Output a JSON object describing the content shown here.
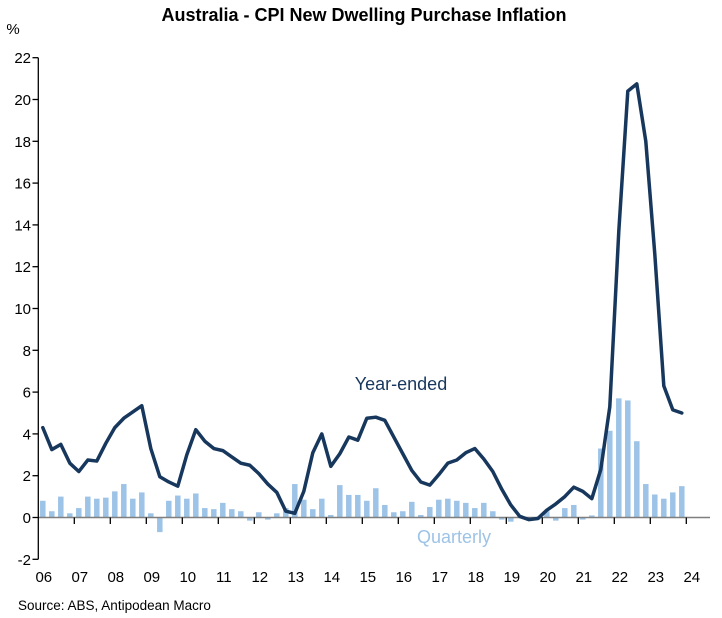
{
  "title": "Australia - CPI New Dwelling Purchase Inflation",
  "y_axis_unit_label": "%",
  "source": "Source: ABS, Antipodean Macro",
  "colors": {
    "line": "#17375D",
    "bar": "#9DC3E6",
    "axis": "#000000",
    "zero_line": "#7F7F7F",
    "text": "#000000"
  },
  "chart_data": {
    "type": "mixed",
    "frequency": "quarterly",
    "x_start_year": 2006,
    "x_tick_labels": [
      "06",
      "07",
      "08",
      "09",
      "10",
      "11",
      "12",
      "13",
      "14",
      "15",
      "16",
      "17",
      "18",
      "19",
      "20",
      "21",
      "22",
      "23",
      "24"
    ],
    "ylim": [
      -2,
      22
    ],
    "y_tick_step": 2,
    "grid": false,
    "legend_position": "inline-labels",
    "series": [
      {
        "name": "Year-ended",
        "type": "line",
        "color": "#17375D",
        "values": [
          4.3,
          3.25,
          3.5,
          2.6,
          2.2,
          2.75,
          2.7,
          3.55,
          4.3,
          4.75,
          5.05,
          5.35,
          3.3,
          1.95,
          1.7,
          1.5,
          3.0,
          4.2,
          3.65,
          3.3,
          3.2,
          2.9,
          2.6,
          2.5,
          2.1,
          1.6,
          1.2,
          0.3,
          0.2,
          1.25,
          3.1,
          4.0,
          2.45,
          3.05,
          3.85,
          3.7,
          4.75,
          4.8,
          4.65,
          3.85,
          3.05,
          2.25,
          1.7,
          1.55,
          2.05,
          2.6,
          2.75,
          3.1,
          3.3,
          2.8,
          2.2,
          1.35,
          0.6,
          0.05,
          -0.1,
          -0.05,
          0.35,
          0.65,
          1.0,
          1.45,
          1.25,
          0.9,
          2.3,
          5.3,
          13.7,
          20.4,
          20.75,
          18.0,
          12.6,
          6.3,
          5.15,
          5.0
        ]
      },
      {
        "name": "Quarterly",
        "type": "bar",
        "color": "#9DC3E6",
        "values": [
          0.8,
          0.3,
          1.0,
          0.2,
          0.45,
          1.0,
          0.9,
          0.95,
          1.25,
          1.6,
          0.9,
          1.2,
          0.2,
          -0.7,
          0.8,
          1.05,
          0.9,
          1.15,
          0.45,
          0.4,
          0.7,
          0.4,
          0.3,
          -0.15,
          0.25,
          -0.1,
          0.2,
          0.45,
          1.6,
          0.85,
          0.4,
          0.9,
          0.12,
          1.55,
          1.08,
          1.08,
          0.8,
          1.4,
          0.6,
          0.25,
          0.3,
          0.75,
          0.12,
          0.5,
          0.85,
          0.9,
          0.8,
          0.7,
          0.45,
          0.7,
          0.3,
          -0.1,
          -0.2,
          0.12,
          -0.15,
          -0.1,
          0.3,
          -0.15,
          0.45,
          0.6,
          -0.1,
          0.1,
          3.3,
          4.15,
          5.7,
          5.6,
          3.65,
          1.6,
          1.1,
          0.9,
          1.2,
          1.5
        ]
      }
    ]
  }
}
